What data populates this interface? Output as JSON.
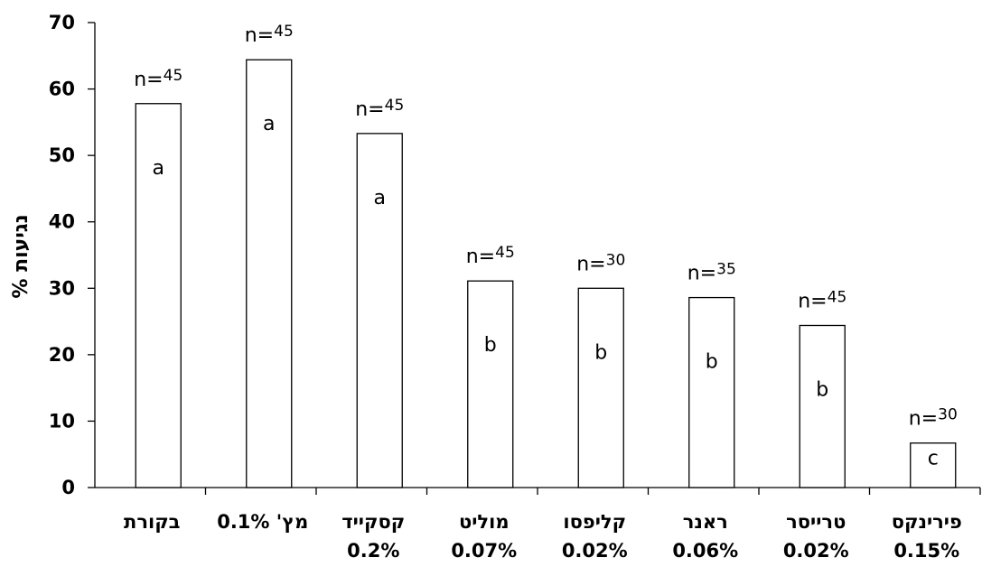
{
  "chart_data": {
    "type": "bar",
    "categories": [
      {
        "line1": "בקורת",
        "line2": ""
      },
      {
        "line1": "מץ' 0.1%",
        "line2": ""
      },
      {
        "line1": "קסקייד",
        "line2": "0.2%"
      },
      {
        "line1": "מוליט",
        "line2": "0.07%"
      },
      {
        "line1": "קליפסו",
        "line2": "0.02%"
      },
      {
        "line1": "ראנר",
        "line2": "0.06%"
      },
      {
        "line1": "טרייסר",
        "line2": "0.02%"
      },
      {
        "line1": "פירינקס",
        "line2": "0.15%"
      }
    ],
    "values": [
      57.8,
      64.4,
      53.3,
      31.1,
      30.0,
      28.6,
      24.4,
      6.7
    ],
    "n_labels": [
      {
        "prefix": "n=",
        "num": "45"
      },
      {
        "prefix": "n=",
        "num": "45"
      },
      {
        "prefix": "n=",
        "num": "45"
      },
      {
        "prefix": "n=",
        "num": "45"
      },
      {
        "prefix": "n=",
        "num": "30"
      },
      {
        "prefix": "n=",
        "num": "35"
      },
      {
        "prefix": "n=",
        "num": "45"
      },
      {
        "prefix": "n=",
        "num": "30"
      }
    ],
    "letters": [
      "a",
      "a",
      "a",
      "b",
      "b",
      "b",
      "b",
      "c"
    ],
    "ylabel": "% נגיעות",
    "ylim": [
      0,
      70
    ],
    "yticks": [
      "0",
      "10",
      "20",
      "30",
      "40",
      "50",
      "60",
      "70"
    ],
    "grid": false,
    "legend": "none"
  }
}
